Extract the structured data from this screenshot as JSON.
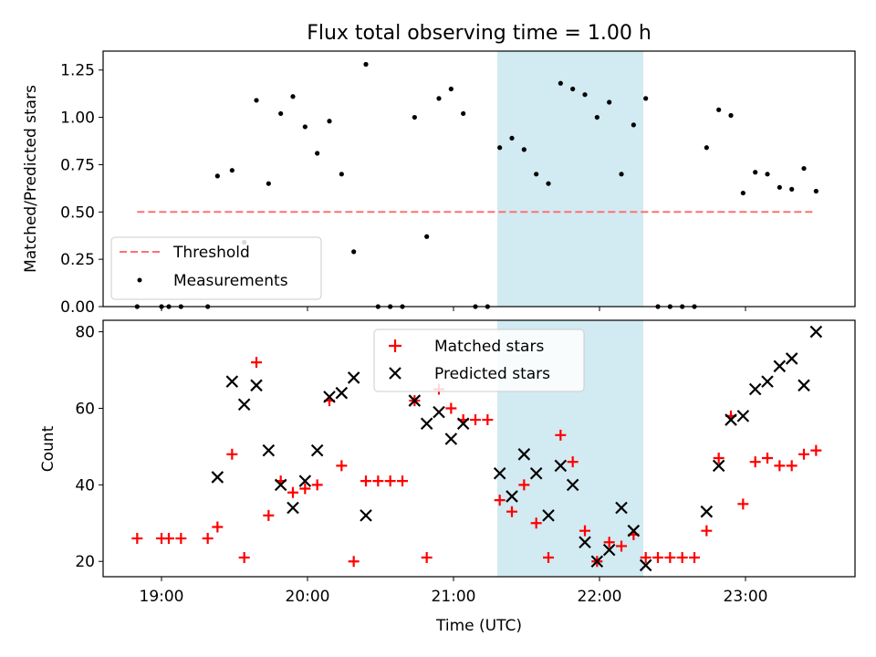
{
  "title": "Flux total observing time = 1.00 h",
  "colors": {
    "threshold": "#ff7070",
    "measurement": "#000000",
    "matched": "#ff0000",
    "predicted": "#000000",
    "highlight": "#add8e6"
  },
  "chart_data": [
    {
      "type": "scatter",
      "ylabel": "Matched/Predicted stars",
      "xlabel": "",
      "xlim": [
        "18:36",
        "23:45"
      ],
      "ylim": [
        0,
        1.35
      ],
      "yticks": [
        "0.00",
        "0.25",
        "0.50",
        "0.75",
        "1.00",
        "1.25"
      ],
      "highlight_span": [
        "21:18",
        "22:18"
      ],
      "legend": {
        "position": "lower-left",
        "entries": [
          "Threshold",
          "Measurements"
        ]
      },
      "threshold": {
        "name": "Threshold",
        "y": 0.5,
        "x": [
          "18:50",
          "23:28"
        ]
      },
      "series": [
        {
          "name": "Measurements",
          "points": [
            [
              "18:50",
              0.0
            ],
            [
              "19:00",
              0.0
            ],
            [
              "19:03",
              0.0
            ],
            [
              "19:08",
              0.0
            ],
            [
              "19:19",
              0.0
            ],
            [
              "19:23",
              0.69
            ],
            [
              "19:29",
              0.72
            ],
            [
              "19:34",
              0.34
            ],
            [
              "19:39",
              1.09
            ],
            [
              "19:44",
              0.65
            ],
            [
              "19:49",
              1.02
            ],
            [
              "19:54",
              1.11
            ],
            [
              "19:59",
              0.95
            ],
            [
              "20:04",
              0.81
            ],
            [
              "20:09",
              0.98
            ],
            [
              "20:14",
              0.7
            ],
            [
              "20:19",
              0.29
            ],
            [
              "20:24",
              1.28
            ],
            [
              "20:29",
              0.0
            ],
            [
              "20:34",
              0.0
            ],
            [
              "20:39",
              0.0
            ],
            [
              "20:44",
              1.0
            ],
            [
              "20:49",
              0.37
            ],
            [
              "20:54",
              1.1
            ],
            [
              "20:59",
              1.15
            ],
            [
              "21:04",
              1.02
            ],
            [
              "21:09",
              0.0
            ],
            [
              "21:14",
              0.0
            ],
            [
              "21:19",
              0.84
            ],
            [
              "21:24",
              0.89
            ],
            [
              "21:29",
              0.83
            ],
            [
              "21:34",
              0.7
            ],
            [
              "21:39",
              0.65
            ],
            [
              "21:44",
              1.18
            ],
            [
              "21:49",
              1.15
            ],
            [
              "21:54",
              1.12
            ],
            [
              "21:59",
              1.0
            ],
            [
              "22:04",
              1.08
            ],
            [
              "22:09",
              0.7
            ],
            [
              "22:14",
              0.96
            ],
            [
              "22:19",
              1.1
            ],
            [
              "22:24",
              0.0
            ],
            [
              "22:29",
              0.0
            ],
            [
              "22:34",
              0.0
            ],
            [
              "22:39",
              0.0
            ],
            [
              "22:44",
              0.84
            ],
            [
              "22:49",
              1.04
            ],
            [
              "22:54",
              1.01
            ],
            [
              "22:59",
              0.6
            ],
            [
              "23:04",
              0.71
            ],
            [
              "23:09",
              0.7
            ],
            [
              "23:14",
              0.63
            ],
            [
              "23:19",
              0.62
            ],
            [
              "23:24",
              0.73
            ],
            [
              "23:29",
              0.61
            ]
          ]
        }
      ]
    },
    {
      "type": "scatter",
      "ylabel": "Count",
      "xlabel": "Time (UTC)",
      "xlim": [
        "18:36",
        "23:45"
      ],
      "ylim": [
        16,
        83
      ],
      "yticks": [
        "20",
        "40",
        "60",
        "80"
      ],
      "xticks": [
        "19:00",
        "20:00",
        "21:00",
        "22:00",
        "23:00"
      ],
      "highlight_span": [
        "21:18",
        "22:18"
      ],
      "legend": {
        "position": "upper-center",
        "entries": [
          "Matched stars",
          "Predicted stars"
        ]
      },
      "series": [
        {
          "name": "Matched stars",
          "points": [
            [
              "18:50",
              26
            ],
            [
              "19:00",
              26
            ],
            [
              "19:03",
              26
            ],
            [
              "19:08",
              26
            ],
            [
              "19:19",
              26
            ],
            [
              "19:23",
              29
            ],
            [
              "19:29",
              48
            ],
            [
              "19:34",
              21
            ],
            [
              "19:39",
              72
            ],
            [
              "19:44",
              32
            ],
            [
              "19:49",
              41
            ],
            [
              "19:54",
              38
            ],
            [
              "19:59",
              39
            ],
            [
              "20:04",
              40
            ],
            [
              "20:09",
              62
            ],
            [
              "20:14",
              45
            ],
            [
              "20:19",
              20
            ],
            [
              "20:24",
              41
            ],
            [
              "20:29",
              41
            ],
            [
              "20:34",
              41
            ],
            [
              "20:39",
              41
            ],
            [
              "20:44",
              62
            ],
            [
              "20:49",
              21
            ],
            [
              "20:54",
              65
            ],
            [
              "20:59",
              60
            ],
            [
              "21:04",
              57
            ],
            [
              "21:09",
              57
            ],
            [
              "21:14",
              57
            ],
            [
              "21:19",
              36
            ],
            [
              "21:24",
              33
            ],
            [
              "21:29",
              40
            ],
            [
              "21:34",
              30
            ],
            [
              "21:39",
              21
            ],
            [
              "21:44",
              53
            ],
            [
              "21:49",
              46
            ],
            [
              "21:54",
              28
            ],
            [
              "21:59",
              20
            ],
            [
              "22:04",
              25
            ],
            [
              "22:09",
              24
            ],
            [
              "22:14",
              27
            ],
            [
              "22:19",
              21
            ],
            [
              "22:24",
              21
            ],
            [
              "22:29",
              21
            ],
            [
              "22:34",
              21
            ],
            [
              "22:39",
              21
            ],
            [
              "22:44",
              28
            ],
            [
              "22:49",
              47
            ],
            [
              "22:54",
              58
            ],
            [
              "22:59",
              35
            ],
            [
              "23:04",
              46
            ],
            [
              "23:09",
              47
            ],
            [
              "23:14",
              45
            ],
            [
              "23:19",
              45
            ],
            [
              "23:24",
              48
            ],
            [
              "23:29",
              49
            ]
          ]
        },
        {
          "name": "Predicted stars",
          "points": [
            [
              "19:23",
              42
            ],
            [
              "19:29",
              67
            ],
            [
              "19:34",
              61
            ],
            [
              "19:39",
              66
            ],
            [
              "19:44",
              49
            ],
            [
              "19:49",
              40
            ],
            [
              "19:54",
              34
            ],
            [
              "19:59",
              41
            ],
            [
              "20:04",
              49
            ],
            [
              "20:09",
              63
            ],
            [
              "20:14",
              64
            ],
            [
              "20:19",
              68
            ],
            [
              "20:24",
              32
            ],
            [
              "20:44",
              62
            ],
            [
              "20:49",
              56
            ],
            [
              "20:54",
              59
            ],
            [
              "20:59",
              52
            ],
            [
              "21:04",
              56
            ],
            [
              "21:19",
              43
            ],
            [
              "21:24",
              37
            ],
            [
              "21:29",
              48
            ],
            [
              "21:34",
              43
            ],
            [
              "21:39",
              32
            ],
            [
              "21:44",
              45
            ],
            [
              "21:49",
              40
            ],
            [
              "21:54",
              25
            ],
            [
              "21:59",
              20
            ],
            [
              "22:04",
              23
            ],
            [
              "22:09",
              34
            ],
            [
              "22:14",
              28
            ],
            [
              "22:19",
              19
            ],
            [
              "22:44",
              33
            ],
            [
              "22:49",
              45
            ],
            [
              "22:54",
              57
            ],
            [
              "22:59",
              58
            ],
            [
              "23:04",
              65
            ],
            [
              "23:09",
              67
            ],
            [
              "23:14",
              71
            ],
            [
              "23:19",
              73
            ],
            [
              "23:24",
              66
            ],
            [
              "23:29",
              80
            ]
          ]
        }
      ]
    }
  ]
}
